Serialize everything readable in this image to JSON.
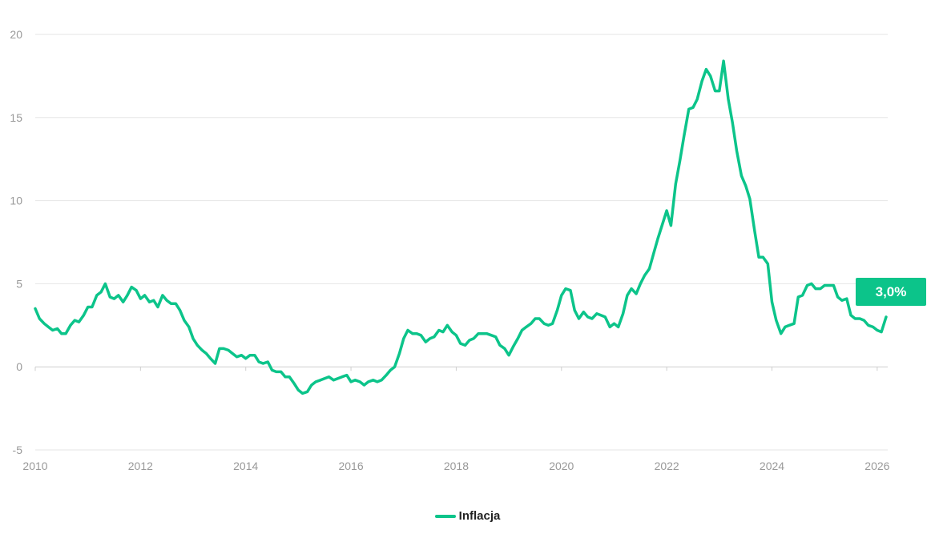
{
  "colors": {
    "line": "#0cc48a",
    "grid": "#e6e6e6",
    "text": "#999999"
  },
  "legend": {
    "label": "Inflacja"
  },
  "badge": {
    "text": "3,0%"
  },
  "chart_data": {
    "type": "line",
    "title": "",
    "xlabel": "",
    "ylabel": "",
    "xlim": [
      2010.0,
      2026.2
    ],
    "ylim": [
      -5,
      20
    ],
    "y_ticks": [
      "-5",
      "0",
      "5",
      "10",
      "15",
      "20"
    ],
    "x_ticks": [
      "2010",
      "2012",
      "2014",
      "2016",
      "2018",
      "2020",
      "2022",
      "2024",
      "2026"
    ],
    "grid": "horizontal",
    "legend_position": "bottom-center",
    "series": [
      {
        "name": "Inflacja",
        "x": [
          2010.0,
          2010.08,
          2010.17,
          2010.25,
          2010.33,
          2010.42,
          2010.5,
          2010.58,
          2010.67,
          2010.75,
          2010.83,
          2010.92,
          2011.0,
          2011.08,
          2011.17,
          2011.25,
          2011.33,
          2011.42,
          2011.5,
          2011.58,
          2011.67,
          2011.75,
          2011.83,
          2011.92,
          2012.0,
          2012.08,
          2012.17,
          2012.25,
          2012.33,
          2012.42,
          2012.5,
          2012.58,
          2012.67,
          2012.75,
          2012.83,
          2012.92,
          2013.0,
          2013.08,
          2013.17,
          2013.25,
          2013.33,
          2013.42,
          2013.5,
          2013.58,
          2013.67,
          2013.75,
          2013.83,
          2013.92,
          2014.0,
          2014.08,
          2014.17,
          2014.25,
          2014.33,
          2014.42,
          2014.5,
          2014.58,
          2014.67,
          2014.75,
          2014.83,
          2014.92,
          2015.0,
          2015.08,
          2015.17,
          2015.25,
          2015.33,
          2015.42,
          2015.5,
          2015.58,
          2015.67,
          2015.75,
          2015.83,
          2015.92,
          2016.0,
          2016.08,
          2016.17,
          2016.25,
          2016.33,
          2016.42,
          2016.5,
          2016.58,
          2016.67,
          2016.75,
          2016.83,
          2016.92,
          2017.0,
          2017.08,
          2017.17,
          2017.25,
          2017.33,
          2017.42,
          2017.5,
          2017.58,
          2017.67,
          2017.75,
          2017.83,
          2017.92,
          2018.0,
          2018.08,
          2018.17,
          2018.25,
          2018.33,
          2018.42,
          2018.5,
          2018.58,
          2018.67,
          2018.75,
          2018.83,
          2018.92,
          2019.0,
          2019.08,
          2019.17,
          2019.25,
          2019.33,
          2019.42,
          2019.5,
          2019.58,
          2019.67,
          2019.75,
          2019.83,
          2019.92,
          2020.0,
          2020.08,
          2020.17,
          2020.25,
          2020.33,
          2020.42,
          2020.5,
          2020.58,
          2020.67,
          2020.75,
          2020.83,
          2020.92,
          2021.0,
          2021.08,
          2021.17,
          2021.25,
          2021.33,
          2021.42,
          2021.5,
          2021.58,
          2021.67,
          2021.75,
          2021.83,
          2021.92,
          2022.0,
          2022.08,
          2022.17,
          2022.25,
          2022.33,
          2022.42,
          2022.5,
          2022.58,
          2022.67,
          2022.75,
          2022.83,
          2022.92,
          2023.0,
          2023.08,
          2023.17,
          2023.25,
          2023.33,
          2023.42,
          2023.5,
          2023.58,
          2023.67,
          2023.75,
          2023.83,
          2023.92,
          2024.0,
          2024.08,
          2024.17,
          2024.25,
          2024.33,
          2024.42,
          2024.5,
          2024.58,
          2024.67,
          2024.75,
          2024.83,
          2024.92,
          2025.0,
          2025.08,
          2025.17,
          2025.25,
          2025.33,
          2025.42,
          2025.5,
          2025.58,
          2025.67,
          2025.75,
          2025.83,
          2025.92,
          2026.0,
          2026.08,
          2026.17
        ],
        "values": [
          3.5,
          2.9,
          2.6,
          2.4,
          2.2,
          2.3,
          2.0,
          2.0,
          2.5,
          2.8,
          2.7,
          3.1,
          3.6,
          3.6,
          4.3,
          4.5,
          5.0,
          4.2,
          4.1,
          4.3,
          3.9,
          4.3,
          4.8,
          4.6,
          4.1,
          4.3,
          3.9,
          4.0,
          3.6,
          4.3,
          4.0,
          3.8,
          3.8,
          3.4,
          2.8,
          2.4,
          1.7,
          1.3,
          1.0,
          0.8,
          0.5,
          0.2,
          1.1,
          1.1,
          1.0,
          0.8,
          0.6,
          0.7,
          0.5,
          0.7,
          0.7,
          0.3,
          0.2,
          0.3,
          -0.2,
          -0.3,
          -0.3,
          -0.6,
          -0.6,
          -1.0,
          -1.4,
          -1.6,
          -1.5,
          -1.1,
          -0.9,
          -0.8,
          -0.7,
          -0.6,
          -0.8,
          -0.7,
          -0.6,
          -0.5,
          -0.9,
          -0.8,
          -0.9,
          -1.1,
          -0.9,
          -0.8,
          -0.9,
          -0.8,
          -0.5,
          -0.2,
          0.0,
          0.8,
          1.7,
          2.2,
          2.0,
          2.0,
          1.9,
          1.5,
          1.7,
          1.8,
          2.2,
          2.1,
          2.5,
          2.1,
          1.9,
          1.4,
          1.3,
          1.6,
          1.7,
          2.0,
          2.0,
          2.0,
          1.9,
          1.8,
          1.3,
          1.1,
          0.7,
          1.2,
          1.7,
          2.2,
          2.4,
          2.6,
          2.9,
          2.9,
          2.6,
          2.5,
          2.6,
          3.4,
          4.3,
          4.7,
          4.6,
          3.4,
          2.9,
          3.3,
          3.0,
          2.9,
          3.2,
          3.1,
          3.0,
          2.4,
          2.6,
          2.4,
          3.2,
          4.3,
          4.7,
          4.4,
          5.0,
          5.5,
          5.9,
          6.8,
          7.7,
          8.6,
          9.4,
          8.5,
          11.0,
          12.4,
          13.9,
          15.5,
          15.6,
          16.1,
          17.2,
          17.9,
          17.5,
          16.6,
          16.6,
          18.4,
          16.1,
          14.7,
          13.0,
          11.5,
          10.9,
          10.1,
          8.2,
          6.6,
          6.6,
          6.2,
          3.9,
          2.8,
          2.0,
          2.4,
          2.5,
          2.6,
          4.2,
          4.3,
          4.9,
          5.0,
          4.7,
          4.7,
          4.9,
          4.9,
          4.9,
          4.2,
          4.0,
          4.1,
          3.1,
          2.9,
          2.9,
          2.8,
          2.5,
          2.4,
          2.2,
          2.1,
          3.0
        ]
      }
    ]
  }
}
